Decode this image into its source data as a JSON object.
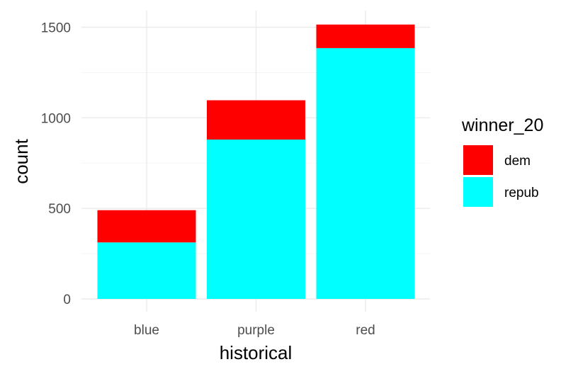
{
  "chart_data": {
    "type": "bar",
    "stacked": true,
    "categories": [
      "blue",
      "purple",
      "red"
    ],
    "series": [
      {
        "name": "dem",
        "values": [
          178,
          217,
          130
        ],
        "color": "#ff0000"
      },
      {
        "name": "repub",
        "values": [
          312,
          880,
          1385
        ],
        "color": "#00ffff"
      }
    ],
    "xlabel": "historical",
    "ylabel": "count",
    "ylim": [
      0,
      1500
    ],
    "yticks": [
      0,
      500,
      1000,
      1500
    ],
    "grid": true,
    "legend": {
      "title": "winner_20",
      "position": "right"
    }
  }
}
